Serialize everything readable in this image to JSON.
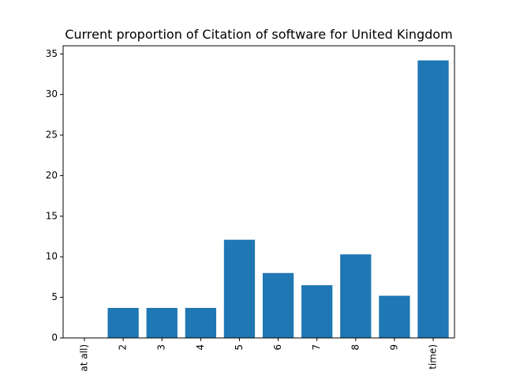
{
  "chart_data": {
    "type": "bar",
    "title": "Current proportion of Citation of software for United Kingdom",
    "xlabel": "",
    "ylabel": "",
    "categories": [
      "at all)",
      "2",
      "3",
      "4",
      "5",
      "6",
      "7",
      "8",
      "9",
      "time)"
    ],
    "values": [
      0,
      3.7,
      3.7,
      3.7,
      12.1,
      8.0,
      6.5,
      10.3,
      5.2,
      34.2
    ],
    "ylim": [
      0,
      36
    ],
    "yticks": [
      0,
      5,
      10,
      15,
      20,
      25,
      30,
      35
    ],
    "grid": false,
    "bar_color": "#1f77b4"
  }
}
